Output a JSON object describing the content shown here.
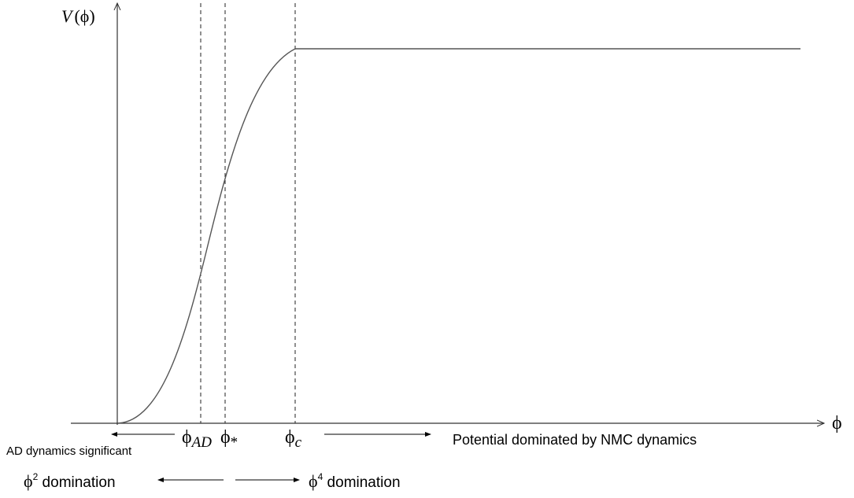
{
  "axes": {
    "y_label_main": "V",
    "y_label_paren_open": "(",
    "y_label_var": "ϕ",
    "y_label_paren_close": ")",
    "x_label": "ϕ"
  },
  "markers": [
    {
      "symbol": "ϕ",
      "subscript": "AD"
    },
    {
      "symbol": "ϕ",
      "subscript": "*"
    },
    {
      "symbol": "ϕ",
      "subscript": "c"
    }
  ],
  "annotations": {
    "ad_dynamics": "AD dynamics significant",
    "nmc_dynamics": "Potential dominated by NMC dynamics",
    "phi2_base": "ϕ",
    "phi2_exp": "2",
    "phi2_text": " domination",
    "phi4_base": "ϕ",
    "phi4_exp": "4",
    "phi4_text": " domination"
  },
  "colors": {
    "curve": "#555555",
    "axis": "#333333",
    "dashed": "#222222",
    "text": "#000000"
  }
}
